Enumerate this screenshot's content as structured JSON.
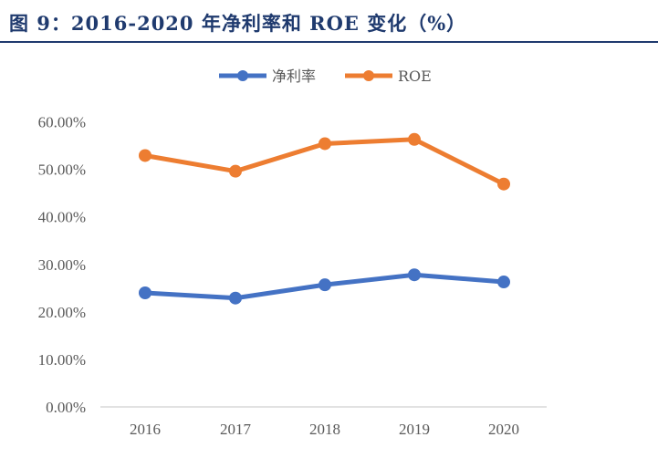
{
  "title": "图 9：2016-2020 年净利率和 ROE 变化（%）",
  "chart_data": {
    "type": "line",
    "title": "",
    "categories": [
      "2016",
      "2017",
      "2018",
      "2019",
      "2020"
    ],
    "series": [
      {
        "name": "净利率",
        "color": "#4472c4",
        "values": [
          24.0,
          22.9,
          25.7,
          27.8,
          26.3
        ]
      },
      {
        "name": "ROE",
        "color": "#ed7d31",
        "values": [
          52.9,
          49.6,
          55.4,
          56.3,
          46.9
        ]
      }
    ],
    "ylim": [
      0,
      60
    ],
    "yticks": [
      "0.00%",
      "10.00%",
      "20.00%",
      "30.00%",
      "40.00%",
      "50.00%",
      "60.00%"
    ],
    "grid": false,
    "legend": "top",
    "xlabel": "",
    "ylabel": ""
  }
}
